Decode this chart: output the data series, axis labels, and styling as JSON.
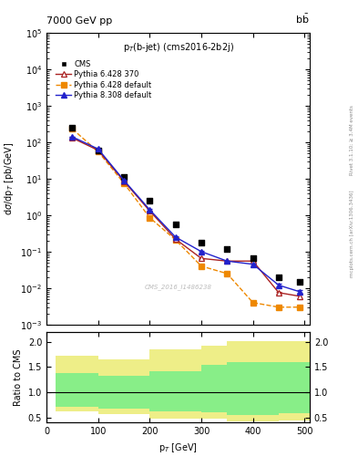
{
  "title_top": "7000 GeV pp",
  "title_right": "b$\\bar{b}$",
  "plot_title": "p$_T$(b-jet) (cms2016-2b2j)",
  "ylabel_main": "dσ/dp$_T$ [pb/GeV]",
  "ylabel_ratio": "Ratio to CMS",
  "xlabel": "p$_T$ [GeV]",
  "watermark": "CMS_2016_I1486238",
  "cms_x": [
    50,
    100,
    150,
    200,
    250,
    300,
    350,
    400,
    450,
    490
  ],
  "cms_y": [
    250,
    60,
    11,
    2.5,
    0.55,
    0.18,
    0.12,
    0.065,
    0.02,
    0.015
  ],
  "py6_370_x": [
    50,
    100,
    150,
    200,
    250,
    300,
    350,
    400,
    450,
    490
  ],
  "py6_370_y": [
    130,
    60,
    8.5,
    1.3,
    0.22,
    0.065,
    0.055,
    0.055,
    0.0075,
    0.006
  ],
  "py6_370_yerr_lo": [
    4,
    1.5,
    0.25,
    0.04,
    0.008,
    0.003,
    0.002,
    0.003,
    0.0005,
    0.001
  ],
  "py6_370_yerr_hi": [
    4,
    1.5,
    0.25,
    0.04,
    0.008,
    0.003,
    0.002,
    0.003,
    0.0005,
    0.001
  ],
  "py6_def_x": [
    50,
    100,
    150,
    200,
    250,
    300,
    350,
    400,
    450,
    490
  ],
  "py6_def_y": [
    230,
    55,
    7.5,
    0.85,
    0.21,
    0.04,
    0.025,
    0.004,
    0.003,
    0.003
  ],
  "py8_def_x": [
    50,
    100,
    150,
    200,
    250,
    300,
    350,
    400,
    450,
    490
  ],
  "py8_def_y": [
    140,
    65,
    9.0,
    1.4,
    0.25,
    0.1,
    0.055,
    0.045,
    0.012,
    0.008
  ],
  "py8_def_yerr_lo": [
    4,
    2,
    0.3,
    0.05,
    0.01,
    0.004,
    0.002,
    0.003,
    0.001,
    0.0006
  ],
  "py8_def_yerr_hi": [
    4,
    2,
    0.3,
    0.05,
    0.01,
    0.004,
    0.002,
    0.003,
    0.001,
    0.0006
  ],
  "ratio_bins": [
    18,
    100,
    200,
    300,
    350,
    450,
    510
  ],
  "ratio_green_lo": [
    0.72,
    0.68,
    0.62,
    0.6,
    0.55,
    0.58
  ],
  "ratio_green_hi": [
    1.38,
    1.32,
    1.42,
    1.55,
    1.6,
    1.6
  ],
  "ratio_yellow_lo": [
    0.62,
    0.56,
    0.48,
    0.48,
    0.43,
    0.45
  ],
  "ratio_yellow_hi": [
    1.72,
    1.65,
    1.85,
    1.92,
    2.02,
    2.02
  ],
  "color_cms": "#000000",
  "color_py6_370": "#aa2222",
  "color_py6_def": "#ee8800",
  "color_py8_def": "#2222cc",
  "color_green": "#88ee88",
  "color_yellow": "#eeee88",
  "xlim": [
    18,
    510
  ],
  "ylim_main": [
    0.001,
    100000.0
  ],
  "ylim_ratio": [
    0.4,
    2.2
  ],
  "ratio_yticks": [
    0.5,
    1.0,
    1.5,
    2.0
  ]
}
